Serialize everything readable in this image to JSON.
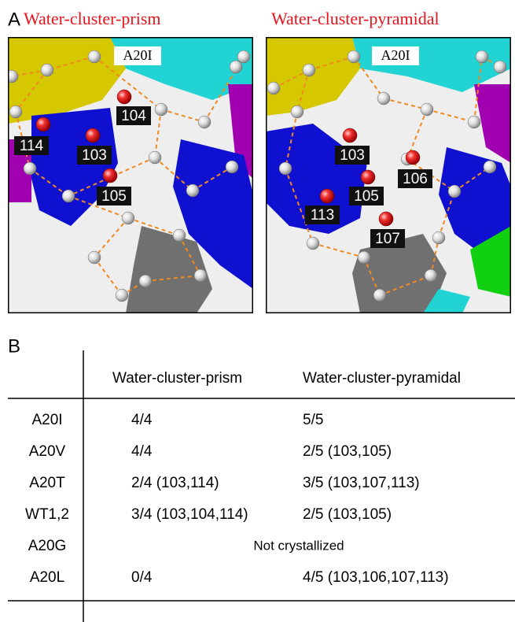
{
  "panel_a": {
    "label": "A",
    "panels": [
      {
        "title": "Water-cluster-prism",
        "tag": "A20I",
        "waters": [
          "104",
          "114",
          "103",
          "105"
        ]
      },
      {
        "title": "Water-cluster-pyramidal",
        "tag": "A20I",
        "waters": [
          "103",
          "106",
          "105",
          "113",
          "107"
        ]
      }
    ]
  },
  "panel_b": {
    "label": "B",
    "columns": [
      "Water-cluster-prism",
      "Water-cluster-pyramidal"
    ],
    "rows": [
      [
        "A20I",
        "4/4",
        "5/5"
      ],
      [
        "A20V",
        "4/4",
        "2/5 (103,105)"
      ],
      [
        "A20T",
        "2/4 (103,114)",
        "3/5 (103,107,113)"
      ],
      [
        "WT1,2",
        "3/4 (103,104,114)",
        "2/5 (103,105)"
      ],
      [
        "A20G",
        "Not crystallized"
      ],
      [
        "A20L",
        "0/4",
        "4/5 (103,106,107,113)"
      ]
    ]
  }
}
